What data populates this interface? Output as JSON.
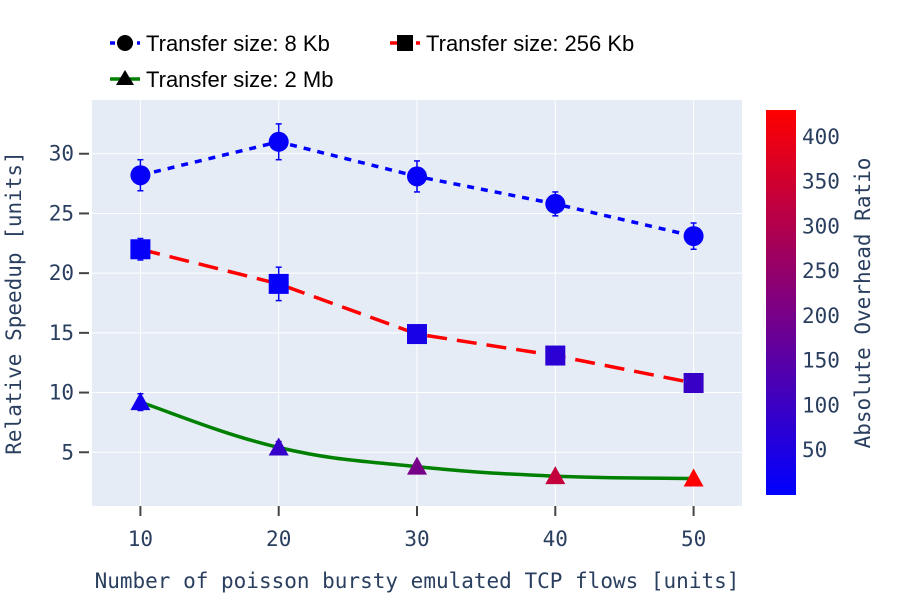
{
  "chart_data": {
    "type": "line",
    "x": [
      10,
      20,
      30,
      40,
      50
    ],
    "xlabel": "Number of poisson bursty emulated TCP flows [units]",
    "ylabel": "Relative Speedup [units]",
    "xlim": [
      6.5,
      53.5
    ],
    "ylim": [
      0.5,
      34.5
    ],
    "x_ticks": [
      "10",
      "20",
      "30",
      "40",
      "50"
    ],
    "y_ticks": [
      "5",
      "10",
      "15",
      "20",
      "25",
      "30"
    ],
    "grid": true,
    "legend_position": "top",
    "series": [
      {
        "name": "Transfer size: 8 Kb",
        "marker": "circle",
        "line_style": "dot",
        "line_color": "#0000ff",
        "values": [
          28.2,
          31.0,
          28.1,
          25.8,
          23.1
        ],
        "error": [
          1.3,
          1.5,
          1.3,
          1.0,
          1.1
        ],
        "overhead": [
          10,
          10,
          10,
          10,
          10
        ]
      },
      {
        "name": "Transfer size: 256 Kb",
        "marker": "square",
        "line_style": "dash",
        "line_color": "#ff0000",
        "values": [
          22.0,
          19.1,
          14.9,
          13.1,
          10.8
        ],
        "error": [
          0.9,
          1.4,
          0,
          0,
          0
        ],
        "overhead": [
          12,
          12,
          40,
          70,
          95
        ]
      },
      {
        "name": "Transfer size: 2 Mb",
        "marker": "triangle-up",
        "line_style": "solid",
        "line_color": "#008000",
        "values": [
          9.2,
          5.4,
          3.8,
          3.0,
          2.8
        ],
        "error": [
          0.7,
          0.5,
          0,
          0,
          0
        ],
        "overhead": [
          30,
          90,
          200,
          330,
          430
        ]
      }
    ],
    "colorbar": {
      "title": "Absolute Overhead Ratio",
      "range": [
        0,
        430
      ],
      "ticks": [
        "50",
        "100",
        "150",
        "200",
        "250",
        "300",
        "350",
        "400"
      ],
      "tick_values": [
        50,
        100,
        150,
        200,
        250,
        300,
        350,
        400
      ],
      "colors": [
        "#0000ff",
        "#ff0000"
      ]
    },
    "colors": {
      "plot_bg": "#e5ecf6",
      "grid": "#ffffff",
      "text": "#2a3f5f"
    }
  }
}
